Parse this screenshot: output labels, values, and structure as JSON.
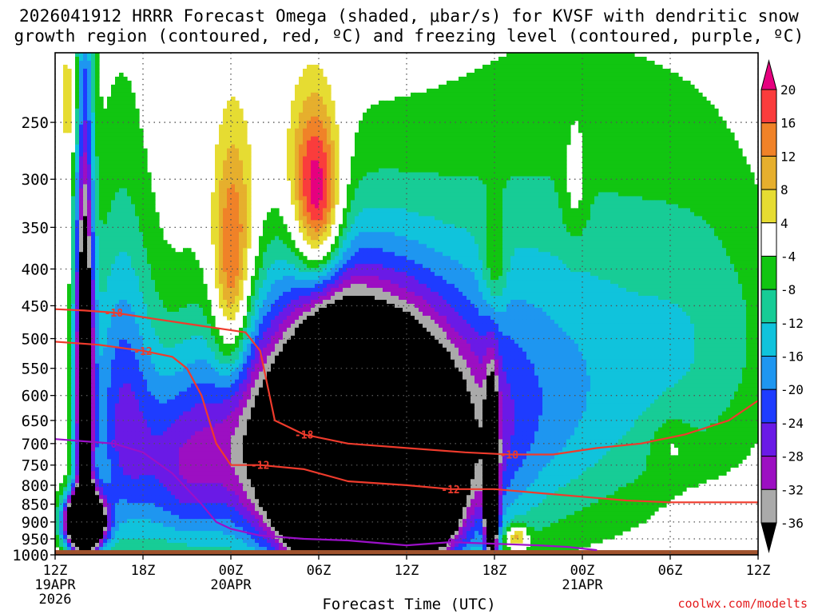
{
  "title_line1": "2026041912 HRRR Forecast Omega (shaded, μbar/s) for KVSF with dendritic snow",
  "title_line2": "growth region (contoured, red, ºC) and freezing level (contoured, purple, ºC)",
  "xlabel": "Forecast Time (UTC)",
  "credit": "coolwx.com/modelts",
  "colors": {
    "ground": "#a0522d",
    "dgz_contour": "#ef3b2c",
    "freezing_contour": "#9b10c8"
  },
  "colorbar": {
    "labels": [
      "20",
      "16",
      "12",
      "8",
      "4",
      "-4",
      "-8",
      "-12",
      "-16",
      "-20",
      "-24",
      "-28",
      "-32",
      "-36"
    ],
    "bands": [
      {
        "range": "<-36",
        "color": "#000000"
      },
      {
        "range": "-36 to -32",
        "color": "#aaaaaa"
      },
      {
        "range": "-32 to -28",
        "color": "#9c0fc2"
      },
      {
        "range": "-28 to -24",
        "color": "#6a1ae6"
      },
      {
        "range": "-24 to -20",
        "color": "#1e3cff"
      },
      {
        "range": "-20 to -16",
        "color": "#1e96f0"
      },
      {
        "range": "-16 to -12",
        "color": "#10c3dc"
      },
      {
        "range": "-12 to -8",
        "color": "#17cc96"
      },
      {
        "range": "-8 to -4",
        "color": "#11c511"
      },
      {
        "range": "-4 to 4",
        "color": "#ffffff"
      },
      {
        "range": "4 to 8",
        "color": "#e6dc32"
      },
      {
        "range": "8 to 12",
        "color": "#e6af2d"
      },
      {
        "range": "12 to 16",
        "color": "#f08228"
      },
      {
        "range": "16 to 20",
        "color": "#fa3c3c"
      },
      {
        "range": ">20",
        "color": "#e6007f"
      }
    ]
  },
  "chart_data": {
    "type": "heatmap",
    "title": "2026041912 HRRR Forecast Omega (shaded, μbar/s) for KVSF with dendritic snow growth region (contoured, red, ºC) and freezing level (contoured, purple, ºC)",
    "xlabel": "Forecast Time (UTC)",
    "ylabel": "",
    "x_ticks": [
      {
        "h": 0,
        "label": "12Z",
        "date": "19APR",
        "year": "2026"
      },
      {
        "h": 6,
        "label": "18Z"
      },
      {
        "h": 12,
        "label": "00Z",
        "date": "20APR"
      },
      {
        "h": 18,
        "label": "06Z"
      },
      {
        "h": 24,
        "label": "12Z"
      },
      {
        "h": 30,
        "label": "18Z"
      },
      {
        "h": 36,
        "label": "00Z",
        "date": "21APR"
      },
      {
        "h": 42,
        "label": "06Z"
      },
      {
        "h": 48,
        "label": "12Z"
      }
    ],
    "xlim": [
      0,
      48
    ],
    "y_ticks": [
      250,
      300,
      350,
      400,
      450,
      500,
      550,
      600,
      650,
      700,
      750,
      800,
      850,
      900,
      950,
      1000
    ],
    "ylim": [
      200,
      1000
    ],
    "y_log_pressure": true,
    "surface_pressure": 985,
    "omega_units": "μbar/s",
    "omega_regions": [
      {
        "h": 21,
        "p": 760,
        "sh": 3.6,
        "sp": 190,
        "v": -120
      },
      {
        "h": 19,
        "p": 745,
        "sh": 1.8,
        "sp": 150,
        "v": -50
      },
      {
        "h": 2,
        "p": 900,
        "sh": 0.9,
        "sp": 55,
        "v": -90
      },
      {
        "h": 2,
        "p": 560,
        "sh": 0.45,
        "sp": 260,
        "v": -48
      },
      {
        "h": 25.8,
        "p": 875,
        "sh": 0.8,
        "sp": 50,
        "v": -65
      },
      {
        "h": 29.8,
        "p": 820,
        "sh": 0.3,
        "sp": 140,
        "v": -60
      },
      {
        "h": 4.5,
        "p": 640,
        "sh": 1.6,
        "sp": 230,
        "v": -22
      },
      {
        "h": 8.5,
        "p": 760,
        "sh": 2.2,
        "sp": 160,
        "v": -20
      },
      {
        "h": 14,
        "p": 680,
        "sh": 3.5,
        "sp": 200,
        "v": -26
      },
      {
        "h": 26,
        "p": 700,
        "sh": 3.5,
        "sp": 210,
        "v": -18
      },
      {
        "h": 31,
        "p": 620,
        "sh": 4.5,
        "sp": 220,
        "v": -12
      },
      {
        "h": 38,
        "p": 560,
        "sh": 6,
        "sp": 240,
        "v": -10
      },
      {
        "h": 45,
        "p": 480,
        "sh": 4,
        "sp": 160,
        "v": -6
      },
      {
        "h": 12,
        "p": 450,
        "sh": 0.9,
        "sp": 90,
        "v": 17
      },
      {
        "h": 12.3,
        "p": 340,
        "sh": 1.2,
        "sp": 80,
        "v": 13
      },
      {
        "h": 18,
        "p": 330,
        "sh": 1.1,
        "sp": 60,
        "v": 24
      },
      {
        "h": 17.2,
        "p": 285,
        "sh": 1.4,
        "sp": 55,
        "v": 10
      },
      {
        "h": 1,
        "p": 235,
        "sh": 0.5,
        "sp": 30,
        "v": 8
      },
      {
        "h": 30,
        "p": 400,
        "sh": 0.6,
        "sp": 45,
        "v": 9
      },
      {
        "h": 35.5,
        "p": 310,
        "sh": 0.6,
        "sp": 40,
        "v": 6
      },
      {
        "h": 42,
        "p": 700,
        "sh": 1,
        "sp": 45,
        "v": 5
      },
      {
        "h": 45,
        "p": 900,
        "sh": 1.8,
        "sp": 50,
        "v": 6
      },
      {
        "h": 31.5,
        "p": 945,
        "sh": 0.5,
        "sp": 25,
        "v": 18
      }
    ],
    "series": [
      {
        "name": "-18",
        "color": "#ef3b2c",
        "x": [
          0,
          2,
          4,
          7,
          10,
          13,
          14,
          15,
          17,
          20,
          24,
          28,
          31,
          34,
          37,
          40,
          43,
          46,
          48
        ],
        "y": [
          455,
          457,
          460,
          470,
          480,
          490,
          520,
          650,
          680,
          700,
          710,
          720,
          725,
          725,
          710,
          700,
          680,
          650,
          610
        ]
      },
      {
        "name": "-12",
        "color": "#ef3b2c",
        "x": [
          0,
          3,
          6,
          8,
          9,
          10,
          11,
          12,
          14,
          17,
          20,
          24,
          27,
          30,
          33,
          36,
          39,
          42,
          45,
          48
        ],
        "y": [
          505,
          510,
          520,
          530,
          550,
          600,
          700,
          750,
          750,
          760,
          790,
          800,
          810,
          810,
          820,
          830,
          840,
          845,
          845,
          845
        ]
      },
      {
        "name": "0",
        "color": "#9b10c8",
        "x": [
          0,
          2,
          4,
          6,
          8,
          10,
          11,
          12,
          14,
          17,
          20,
          24,
          27,
          30,
          33,
          35,
          37
        ],
        "y": [
          690,
          695,
          700,
          720,
          770,
          850,
          900,
          920,
          940,
          950,
          955,
          970,
          960,
          965,
          970,
          975,
          985
        ]
      }
    ]
  }
}
